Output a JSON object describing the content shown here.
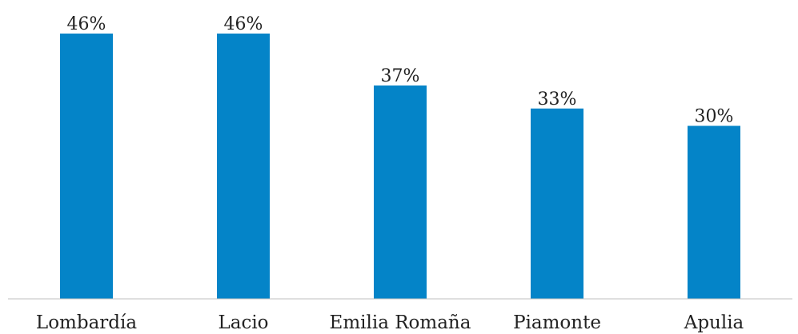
{
  "chart_data": {
    "type": "bar",
    "title": "",
    "xlabel": "",
    "ylabel": "",
    "categories": [
      "Lombardía",
      "Lacio",
      "Emilia Romaña",
      "Piamonte",
      "Apulia"
    ],
    "values": [
      46,
      46,
      37,
      33,
      30
    ],
    "data_labels": [
      "46%",
      "46%",
      "37%",
      "33%",
      "30%"
    ],
    "value_unit": "%",
    "ylim": [
      0,
      46
    ],
    "grid": false,
    "legend": "none",
    "bar_color": "#0484c8"
  }
}
